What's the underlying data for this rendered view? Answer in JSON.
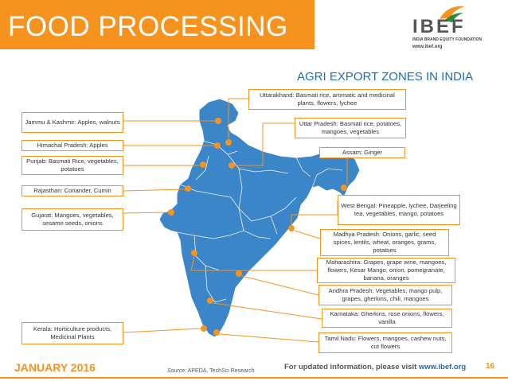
{
  "header": {
    "title": "FOOD PROCESSING"
  },
  "logo": {
    "word": "IBEF",
    "tagline": "INDIA BRAND EQUITY FOUNDATION",
    "url": "www.ibef.org"
  },
  "subtitle": "AGRI EXPORT ZONES IN INDIA",
  "colors": {
    "accent": "#f5931e",
    "map_fill": "#3a86c8",
    "dot": "#f5931e",
    "title_blue": "#1f6db0"
  },
  "labels": {
    "jk": "Jammu & Kashmir: Apples, walnuts",
    "hp": "Himachal Pradesh: Apples",
    "pb": "Punjab: Basmati  Rice, vegetables, potatoes",
    "rj": "Rajasthan: Coriander, Cumin",
    "gj": "Gujarat: Mangoes, vegetables, sesame seeds, onions",
    "kl": "Kerala: Horticulture products, Medicinal Plants",
    "uk": "Uttarakhand: Basmati rice, aromatic and medicinal plants, flowers, lychee",
    "up": "Uttar Pradesh: Basmati rice, potatoes, mangoes, vegetables",
    "as": "Assam: Ginger",
    "wb": "West Bengal: Pineapple, lychee, Darjeeling tea, vegetables, mango, potatoes",
    "mp": "Madhya Pradesh: Onions, garlic, seed spices, lentils, wheat, oranges, grams, potatoes",
    "mh": "Maharashtra: Grapes, grape wine, mangoes, flowers, Kesar Mango, onion, pomegranate, banana, oranges",
    "ap": "Andhra Pradesh: Vegetables, mango pulp, grapes, gherkins, chili, mangoes",
    "ka": "Karnataka: Gherkins, rose onions, flowers, vanilla",
    "tn": "Tamil Nadu: Flowers, mangoes, cashew nuts, cut flowers"
  },
  "footer": {
    "date": "JANUARY 2016",
    "source_label": "Source:",
    "source": " APEDA, TechSci Research",
    "info": "For updated information, please visit ",
    "url": "www.ibef.org",
    "page": "16"
  }
}
